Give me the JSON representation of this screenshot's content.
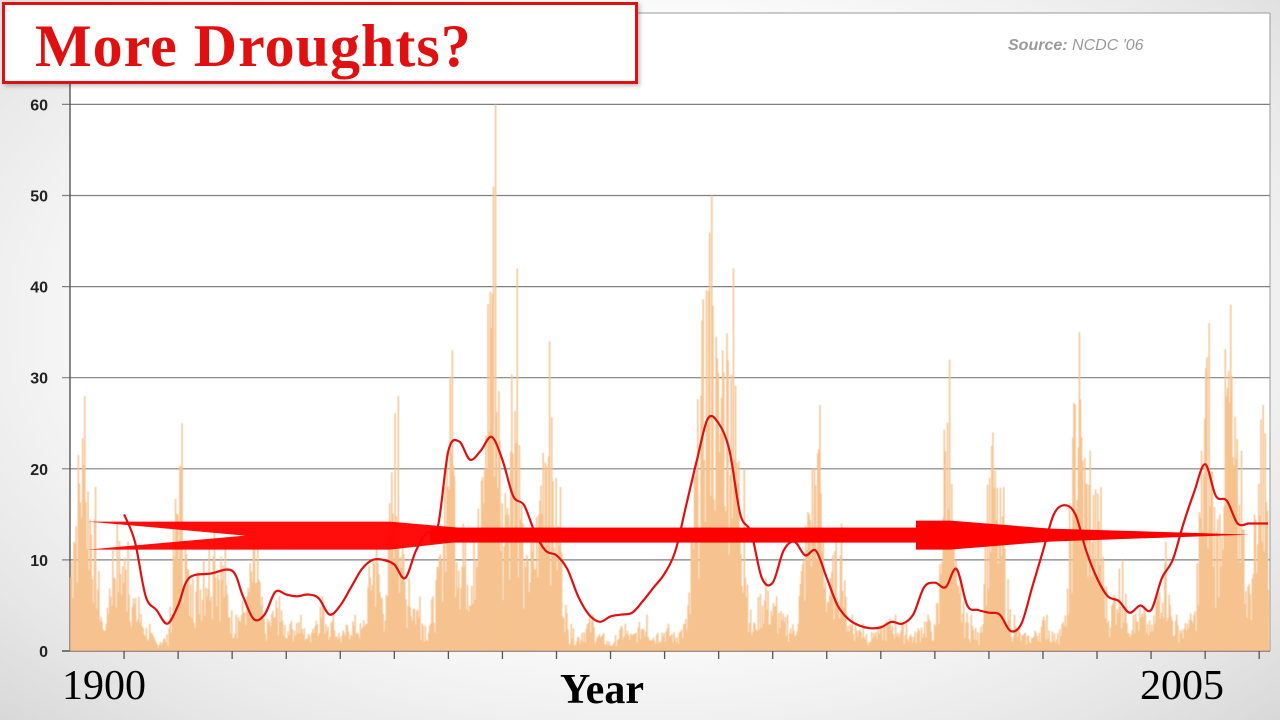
{
  "title": "More Droughts?",
  "source": {
    "label": "Source:",
    "text": "NCDC '06"
  },
  "chart_data": {
    "type": "area",
    "xlabel": "Year",
    "x_start_label": "1900",
    "x_end_label": "2005",
    "ylabel": "",
    "xlim": [
      1895,
      2006
    ],
    "ylim": [
      0,
      60
    ],
    "yticks": [
      0,
      10,
      20,
      30,
      40,
      50,
      60
    ],
    "grid": true,
    "colors": {
      "bars": "#f6c38f",
      "smoothed_line": "#e01010",
      "arrow": "#ff0000",
      "grid": "#808080"
    },
    "bar_peaks": [
      [
        1895,
        12
      ],
      [
        1896,
        28
      ],
      [
        1897,
        18
      ],
      [
        1898,
        3
      ],
      [
        1899,
        14
      ],
      [
        1900,
        12
      ],
      [
        1901,
        6
      ],
      [
        1902,
        3
      ],
      [
        1903,
        1
      ],
      [
        1904,
        2
      ],
      [
        1905,
        25
      ],
      [
        1906,
        8
      ],
      [
        1907,
        10
      ],
      [
        1908,
        14
      ],
      [
        1909,
        12
      ],
      [
        1910,
        4
      ],
      [
        1911,
        6
      ],
      [
        1912,
        13
      ],
      [
        1913,
        3
      ],
      [
        1914,
        6
      ],
      [
        1915,
        3
      ],
      [
        1916,
        4
      ],
      [
        1917,
        2
      ],
      [
        1918,
        6
      ],
      [
        1919,
        4
      ],
      [
        1920,
        2
      ],
      [
        1921,
        4
      ],
      [
        1922,
        3
      ],
      [
        1923,
        14
      ],
      [
        1924,
        6
      ],
      [
        1925,
        28
      ],
      [
        1926,
        8
      ],
      [
        1927,
        6
      ],
      [
        1928,
        3
      ],
      [
        1929,
        10
      ],
      [
        1930,
        33
      ],
      [
        1931,
        14
      ],
      [
        1932,
        12
      ],
      [
        1933,
        20
      ],
      [
        1934,
        60
      ],
      [
        1935,
        15
      ],
      [
        1936,
        42
      ],
      [
        1937,
        10
      ],
      [
        1938,
        15
      ],
      [
        1939,
        34
      ],
      [
        1940,
        18
      ],
      [
        1941,
        3
      ],
      [
        1942,
        2
      ],
      [
        1943,
        4
      ],
      [
        1944,
        2
      ],
      [
        1945,
        1
      ],
      [
        1946,
        3
      ],
      [
        1947,
        2
      ],
      [
        1948,
        4
      ],
      [
        1949,
        2
      ],
      [
        1950,
        3
      ],
      [
        1951,
        2
      ],
      [
        1952,
        4
      ],
      [
        1953,
        28
      ],
      [
        1954,
        50
      ],
      [
        1955,
        33
      ],
      [
        1956,
        42
      ],
      [
        1957,
        20
      ],
      [
        1958,
        3
      ],
      [
        1959,
        8
      ],
      [
        1960,
        6
      ],
      [
        1961,
        4
      ],
      [
        1962,
        3
      ],
      [
        1963,
        15
      ],
      [
        1964,
        27
      ],
      [
        1965,
        8
      ],
      [
        1966,
        14
      ],
      [
        1967,
        4
      ],
      [
        1968,
        3
      ],
      [
        1969,
        2
      ],
      [
        1970,
        3
      ],
      [
        1971,
        4
      ],
      [
        1972,
        3
      ],
      [
        1973,
        2
      ],
      [
        1974,
        4
      ],
      [
        1975,
        3
      ],
      [
        1976,
        32
      ],
      [
        1977,
        8
      ],
      [
        1978,
        4
      ],
      [
        1979,
        2
      ],
      [
        1980,
        24
      ],
      [
        1981,
        18
      ],
      [
        1982,
        4
      ],
      [
        1983,
        2
      ],
      [
        1984,
        2
      ],
      [
        1985,
        4
      ],
      [
        1986,
        2
      ],
      [
        1987,
        4
      ],
      [
        1988,
        35
      ],
      [
        1989,
        22
      ],
      [
        1990,
        18
      ],
      [
        1991,
        5
      ],
      [
        1992,
        10
      ],
      [
        1993,
        4
      ],
      [
        1994,
        5
      ],
      [
        1995,
        3
      ],
      [
        1996,
        12
      ],
      [
        1997,
        4
      ],
      [
        1998,
        3
      ],
      [
        1999,
        5
      ],
      [
        2000,
        36
      ],
      [
        2001,
        15
      ],
      [
        2002,
        38
      ],
      [
        2003,
        22
      ],
      [
        2004,
        8
      ],
      [
        2005,
        27
      ],
      [
        2006,
        25
      ]
    ],
    "smoothed": [
      [
        1900,
        15
      ],
      [
        1901,
        12
      ],
      [
        1902,
        6
      ],
      [
        1903,
        4.5
      ],
      [
        1904,
        3
      ],
      [
        1905,
        5
      ],
      [
        1906,
        8
      ],
      [
        1908,
        8.5
      ],
      [
        1910,
        8.8
      ],
      [
        1911,
        6
      ],
      [
        1912,
        3.5
      ],
      [
        1913,
        4
      ],
      [
        1914,
        6.5
      ],
      [
        1915,
        6.2
      ],
      [
        1916,
        6
      ],
      [
        1917,
        6.2
      ],
      [
        1918,
        5.8
      ],
      [
        1919,
        4
      ],
      [
        1920,
        5
      ],
      [
        1921,
        7
      ],
      [
        1922,
        9
      ],
      [
        1923,
        10
      ],
      [
        1924,
        10
      ],
      [
        1925,
        9.5
      ],
      [
        1926,
        8
      ],
      [
        1927,
        11
      ],
      [
        1928,
        13
      ],
      [
        1929,
        13.5
      ],
      [
        1930,
        22
      ],
      [
        1931,
        23
      ],
      [
        1932,
        21
      ],
      [
        1933,
        22
      ],
      [
        1934,
        23.5
      ],
      [
        1935,
        21
      ],
      [
        1936,
        17
      ],
      [
        1937,
        16
      ],
      [
        1938,
        13
      ],
      [
        1939,
        11
      ],
      [
        1940,
        10.5
      ],
      [
        1941,
        9
      ],
      [
        1942,
        6
      ],
      [
        1943,
        4
      ],
      [
        1944,
        3.2
      ],
      [
        1945,
        3.8
      ],
      [
        1946,
        4
      ],
      [
        1947,
        4.2
      ],
      [
        1948,
        5.5
      ],
      [
        1949,
        7
      ],
      [
        1950,
        8.5
      ],
      [
        1951,
        11
      ],
      [
        1952,
        16
      ],
      [
        1953,
        21
      ],
      [
        1954,
        25.5
      ],
      [
        1955,
        25
      ],
      [
        1956,
        22
      ],
      [
        1957,
        15
      ],
      [
        1958,
        13
      ],
      [
        1959,
        8
      ],
      [
        1960,
        7.5
      ],
      [
        1961,
        11
      ],
      [
        1962,
        12
      ],
      [
        1963,
        10.5
      ],
      [
        1964,
        11
      ],
      [
        1965,
        8
      ],
      [
        1966,
        5
      ],
      [
        1967,
        3.5
      ],
      [
        1968,
        2.8
      ],
      [
        1969,
        2.5
      ],
      [
        1970,
        2.6
      ],
      [
        1971,
        3.2
      ],
      [
        1972,
        3
      ],
      [
        1973,
        4
      ],
      [
        1974,
        7
      ],
      [
        1975,
        7.5
      ],
      [
        1976,
        7
      ],
      [
        1977,
        9
      ],
      [
        1978,
        5
      ],
      [
        1979,
        4.5
      ],
      [
        1980,
        4.2
      ],
      [
        1981,
        4
      ],
      [
        1982,
        2.2
      ],
      [
        1983,
        3
      ],
      [
        1984,
        7
      ],
      [
        1985,
        11
      ],
      [
        1986,
        15
      ],
      [
        1987,
        16
      ],
      [
        1988,
        15
      ],
      [
        1989,
        11
      ],
      [
        1990,
        8
      ],
      [
        1991,
        6
      ],
      [
        1992,
        5.5
      ],
      [
        1993,
        4.2
      ],
      [
        1994,
        5
      ],
      [
        1995,
        4.5
      ],
      [
        1996,
        8
      ],
      [
        1997,
        10
      ],
      [
        1998,
        14
      ],
      [
        1999,
        17.5
      ],
      [
        2000,
        20.5
      ],
      [
        2001,
        17
      ],
      [
        2002,
        16.5
      ],
      [
        2003,
        14
      ],
      [
        2004,
        14
      ]
    ],
    "trend_arrow": {
      "y_start": 13,
      "y_end": 13,
      "x_start": 1895,
      "x_end": 2006
    }
  }
}
